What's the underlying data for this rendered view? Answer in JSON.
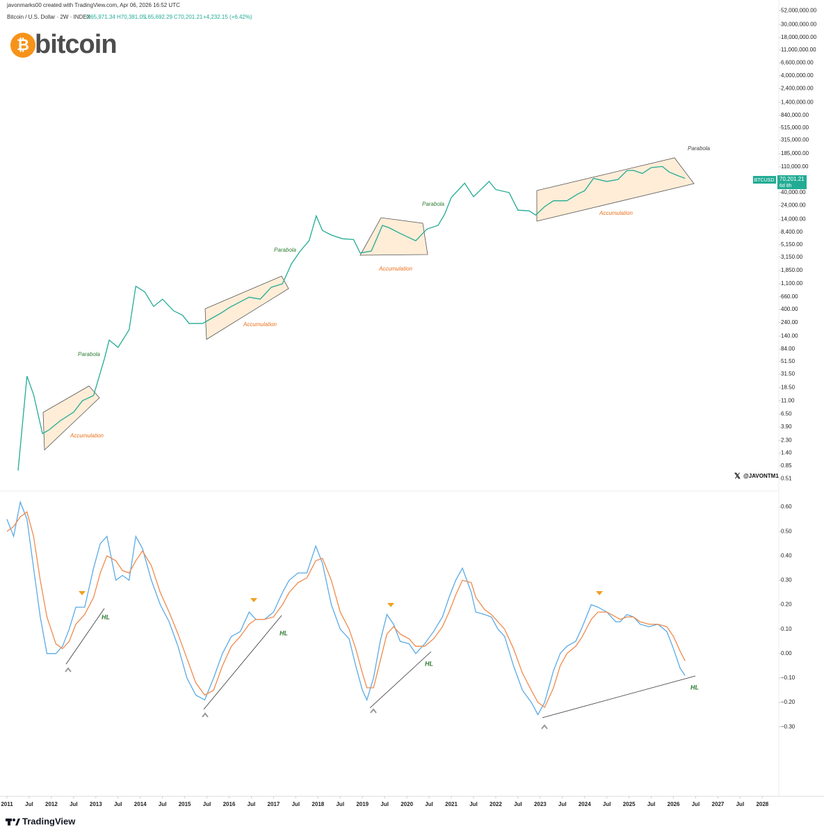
{
  "header": {
    "credit": "javonmarks00 created with TradingView.com, Apr 06, 2026 16:52 UTC",
    "symbol": "Bitcoin / U.S. Dollar · 2W · INDEX",
    "ohlc": [
      "O65,971.34",
      "H70,381.05",
      "L65,692.29",
      "C70,201.21",
      "+4,232.15 (+6.42%)"
    ],
    "logo_symbol": "₿",
    "logo_text": "bitcoin"
  },
  "price_tag": {
    "symbol": "BTCUSD",
    "price": "70,201.21",
    "countdown": "6d 8h"
  },
  "watermark": "@JAVONTM1",
  "footer": "TradingView",
  "chart_data": [
    {
      "type": "line",
      "log_scale": true,
      "color": "#22ab94",
      "x": [
        2011.25,
        2011.45,
        2011.6,
        2011.8,
        2011.95,
        2012.2,
        2012.5,
        2012.7,
        2012.95,
        2013.2,
        2013.3,
        2013.5,
        2013.75,
        2013.9,
        2014.1,
        2014.3,
        2014.5,
        2014.75,
        2014.95,
        2015.1,
        2015.4,
        2015.6,
        2015.85,
        2016.0,
        2016.45,
        2016.7,
        2016.95,
        2017.2,
        2017.4,
        2017.6,
        2017.8,
        2017.96,
        2018.1,
        2018.3,
        2018.55,
        2018.8,
        2018.95,
        2019.2,
        2019.45,
        2019.6,
        2019.85,
        2020.2,
        2020.45,
        2020.7,
        2020.85,
        2021.0,
        2021.3,
        2021.5,
        2021.7,
        2021.85,
        2022.0,
        2022.3,
        2022.5,
        2022.75,
        2022.9,
        2023.1,
        2023.3,
        2023.6,
        2023.85,
        2024.0,
        2024.2,
        2024.5,
        2024.75,
        2024.95,
        2025.1,
        2025.3,
        2025.5,
        2025.75,
        2025.9,
        2026.1,
        2026.26
      ],
      "values": [
        0.7,
        29,
        14,
        3,
        3.5,
        5,
        7,
        11,
        13.5,
        60,
        120,
        90,
        180,
        1000,
        800,
        450,
        600,
        380,
        320,
        230,
        230,
        280,
        360,
        430,
        650,
        600,
        960,
        1100,
        2400,
        4000,
        6000,
        16000,
        9000,
        7500,
        6500,
        6300,
        3700,
        4000,
        11000,
        10000,
        8000,
        6000,
        9500,
        11000,
        17000,
        33000,
        58000,
        34000,
        48000,
        62000,
        45000,
        40000,
        20000,
        19500,
        16500,
        23000,
        29000,
        29000,
        38000,
        43000,
        70000,
        62000,
        67000,
        95000,
        96000,
        85000,
        107000,
        112000,
        90000,
        78000,
        70201.21
      ],
      "xlim": [
        2011,
        2028.37
      ],
      "ylim": [
        0.37,
        60000000
      ],
      "yticks": [
        {
          "value": 52000000,
          "label": "52,000,000.00"
        },
        {
          "value": 30000000,
          "label": "30,000,000.00"
        },
        {
          "value": 18000000,
          "label": "18,000,000.00"
        },
        {
          "value": 11000000,
          "label": "11,000,000.00"
        },
        {
          "value": 6600000,
          "label": "6,600,000.00"
        },
        {
          "value": 4000000,
          "label": "4,000,000.00"
        },
        {
          "value": 2400000,
          "label": "2,400,000.00"
        },
        {
          "value": 1400000,
          "label": "1,400,000.00"
        },
        {
          "value": 840000,
          "label": "840,000.00"
        },
        {
          "value": 515000,
          "label": "515,000.00"
        },
        {
          "value": 315000,
          "label": "315,000.00"
        },
        {
          "value": 185000,
          "label": "185,000.00"
        },
        {
          "value": 110000,
          "label": "110,000.00"
        },
        {
          "value": 40000,
          "label": "40,000.00"
        },
        {
          "value": 24000,
          "label": "24,000.00"
        },
        {
          "value": 14000,
          "label": "14,000.00"
        },
        {
          "value": 8400,
          "label": "8,400.00"
        },
        {
          "value": 5150,
          "label": "5,150.00"
        },
        {
          "value": 3150,
          "label": "3,150.00"
        },
        {
          "value": 1850,
          "label": "1,850.00"
        },
        {
          "value": 1100,
          "label": "1,100.00"
        },
        {
          "value": 660,
          "label": "660.00"
        },
        {
          "value": 400,
          "label": "400.00"
        },
        {
          "value": 240,
          "label": "240.00"
        },
        {
          "value": 140,
          "label": "140.00"
        },
        {
          "value": 84,
          "label": "84.00"
        },
        {
          "value": 51.5,
          "label": "51.50"
        },
        {
          "value": 31.5,
          "label": "31.50"
        },
        {
          "value": 18.5,
          "label": "18.50"
        },
        {
          "value": 11,
          "label": "11.00"
        },
        {
          "value": 6.5,
          "label": "6.50"
        },
        {
          "value": 3.9,
          "label": "3.90"
        },
        {
          "value": 2.3,
          "label": "2.30"
        },
        {
          "value": 1.4,
          "label": "1.40"
        },
        {
          "value": 0.85,
          "label": "0.85"
        },
        {
          "value": 0.51,
          "label": "0.51"
        }
      ],
      "annotations": [
        "Parabola",
        "Parabola",
        "Parabola",
        "Parabola",
        "Accumulation",
        "Accumulation",
        "Accumulation",
        "Accumulation"
      ]
    },
    {
      "type": "line",
      "x": [
        2011.0,
        2011.15,
        2011.3,
        2011.45,
        2011.6,
        2011.75,
        2011.9,
        2012.1,
        2012.25,
        2012.4,
        2012.55,
        2012.75,
        2012.95,
        2013.1,
        2013.25,
        2013.45,
        2013.6,
        2013.75,
        2013.9,
        2014.05,
        2014.25,
        2014.45,
        2014.65,
        2014.85,
        2015.05,
        2015.25,
        2015.45,
        2015.65,
        2015.85,
        2016.05,
        2016.25,
        2016.45,
        2016.6,
        2016.8,
        2017.0,
        2017.2,
        2017.35,
        2017.55,
        2017.75,
        2017.95,
        2018.1,
        2018.3,
        2018.5,
        2018.7,
        2018.85,
        2019.0,
        2019.1,
        2019.25,
        2019.4,
        2019.55,
        2019.7,
        2019.85,
        2020.05,
        2020.2,
        2020.4,
        2020.6,
        2020.8,
        2020.95,
        2021.1,
        2021.25,
        2021.45,
        2021.55,
        2021.75,
        2021.9,
        2022.05,
        2022.2,
        2022.4,
        2022.6,
        2022.8,
        2022.95,
        2023.1,
        2023.3,
        2023.45,
        2023.6,
        2023.8,
        2023.95,
        2024.15,
        2024.3,
        2024.5,
        2024.7,
        2024.8,
        2024.95,
        2025.1,
        2025.25,
        2025.45,
        2025.65,
        2025.85,
        2026.0,
        2026.15,
        2026.26
      ],
      "series": [
        {
          "color": "#5aaae6",
          "values": [
            0.55,
            0.48,
            0.62,
            0.55,
            0.35,
            0.15,
            0.0,
            0.0,
            0.03,
            0.1,
            0.19,
            0.19,
            0.35,
            0.45,
            0.48,
            0.3,
            0.32,
            0.3,
            0.48,
            0.43,
            0.3,
            0.2,
            0.13,
            0.03,
            -0.1,
            -0.17,
            -0.19,
            -0.1,
            0.0,
            0.07,
            0.09,
            0.17,
            0.14,
            0.14,
            0.17,
            0.25,
            0.3,
            0.33,
            0.33,
            0.44,
            0.37,
            0.2,
            0.1,
            0.06,
            -0.05,
            -0.15,
            -0.19,
            -0.1,
            0.05,
            0.16,
            0.12,
            0.05,
            0.04,
            0.0,
            0.04,
            0.09,
            0.15,
            0.23,
            0.3,
            0.35,
            0.25,
            0.17,
            0.16,
            0.15,
            0.1,
            0.07,
            -0.05,
            -0.15,
            -0.2,
            -0.25,
            -0.2,
            -0.07,
            0.0,
            0.03,
            0.05,
            0.11,
            0.2,
            0.19,
            0.17,
            0.13,
            0.13,
            0.16,
            0.15,
            0.12,
            0.11,
            0.12,
            0.09,
            0.02,
            -0.06,
            -0.09
          ]
        },
        {
          "color": "#f08a4b",
          "values": [
            0.5,
            0.52,
            0.56,
            0.58,
            0.48,
            0.3,
            0.15,
            0.04,
            0.02,
            0.05,
            0.12,
            0.16,
            0.23,
            0.33,
            0.4,
            0.38,
            0.34,
            0.33,
            0.38,
            0.42,
            0.36,
            0.25,
            0.17,
            0.08,
            -0.02,
            -0.12,
            -0.17,
            -0.15,
            -0.05,
            0.03,
            0.07,
            0.12,
            0.14,
            0.14,
            0.15,
            0.2,
            0.25,
            0.29,
            0.31,
            0.38,
            0.39,
            0.3,
            0.17,
            0.1,
            0.02,
            -0.08,
            -0.14,
            -0.14,
            -0.03,
            0.08,
            0.11,
            0.08,
            0.06,
            0.03,
            0.03,
            0.06,
            0.11,
            0.17,
            0.24,
            0.3,
            0.29,
            0.23,
            0.18,
            0.16,
            0.13,
            0.1,
            0.02,
            -0.08,
            -0.15,
            -0.2,
            -0.22,
            -0.14,
            -0.05,
            0.0,
            0.03,
            0.07,
            0.14,
            0.17,
            0.17,
            0.15,
            0.14,
            0.15,
            0.15,
            0.13,
            0.12,
            0.12,
            0.11,
            0.07,
            0.01,
            -0.03
          ]
        }
      ],
      "xlim": [
        2011,
        2028.37
      ],
      "ylim": [
        -0.57,
        0.64
      ],
      "yticks": [
        {
          "value": 0.6,
          "label": "0.60"
        },
        {
          "value": 0.5,
          "label": "0.50"
        },
        {
          "value": 0.4,
          "label": "0.40"
        },
        {
          "value": 0.3,
          "label": "0.30"
        },
        {
          "value": 0.2,
          "label": "0.20"
        },
        {
          "value": 0.1,
          "label": "0.10"
        },
        {
          "value": 0,
          "label": "0.00"
        },
        {
          "value": -0.1,
          "label": "−0.10"
        },
        {
          "value": -0.2,
          "label": "−0.20"
        },
        {
          "value": -0.3,
          "label": "−0.30"
        }
      ],
      "xticks": [
        2011,
        {
          "value": 2011.5,
          "label": "Jul"
        },
        2012,
        {
          "value": 2012.5,
          "label": "Jul"
        },
        2013,
        {
          "value": 2013.5,
          "label": "Jul"
        },
        2014,
        {
          "value": 2014.5,
          "label": "Jul"
        },
        2015,
        {
          "value": 2015.5,
          "label": "Jul"
        },
        2016,
        {
          "value": 2016.5,
          "label": "Jul"
        },
        2017,
        {
          "value": 2017.5,
          "label": "Jul"
        },
        2018,
        {
          "value": 2018.5,
          "label": "Jul"
        },
        2019,
        {
          "value": 2019.5,
          "label": "Jul"
        },
        2020,
        {
          "value": 2020.5,
          "label": "Jul"
        },
        2021,
        {
          "value": 2021.5,
          "label": "Jul"
        },
        2022,
        {
          "value": 2022.5,
          "label": "Jul"
        },
        2023,
        {
          "value": 2023.5,
          "label": "Jul"
        },
        2024,
        {
          "value": 2024.5,
          "label": "Jul"
        },
        2025,
        {
          "value": 2025.5,
          "label": "Jul"
        },
        2026,
        {
          "value": 2026.5,
          "label": "Jul"
        },
        2027,
        {
          "value": 2027.5,
          "label": "Jul"
        },
        2028
      ],
      "annotations": [
        "HL",
        "HL",
        "HL",
        "HL"
      ]
    }
  ]
}
